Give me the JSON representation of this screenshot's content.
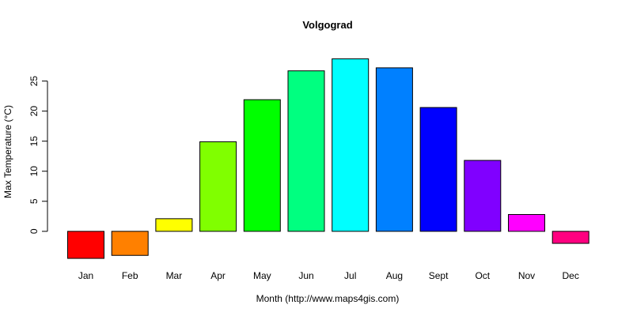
{
  "chart_data": {
    "type": "bar",
    "title": "Volgograd",
    "xlabel": "Month (http://www.maps4gis.com)",
    "ylabel": "Max Temperature (°C)",
    "categories": [
      "Jan",
      "Feb",
      "Mar",
      "Apr",
      "May",
      "Jun",
      "Jul",
      "Aug",
      "Sept",
      "Oct",
      "Nov",
      "Dec"
    ],
    "values": [
      -4.5,
      -4.0,
      2.1,
      14.9,
      21.9,
      26.7,
      28.7,
      27.2,
      20.6,
      11.8,
      2.8,
      -2.0
    ],
    "colors": [
      "#FF0000",
      "#FF8000",
      "#FFFF00",
      "#80FF00",
      "#00FF00",
      "#00FF80",
      "#00FFFF",
      "#0080FF",
      "#0000FF",
      "#8000FF",
      "#FF00FF",
      "#FF0080"
    ],
    "yticks": [
      0,
      5,
      10,
      15,
      20,
      25
    ],
    "ylim": [
      -6.2,
      30.6
    ],
    "grid": false,
    "legend": "none"
  }
}
